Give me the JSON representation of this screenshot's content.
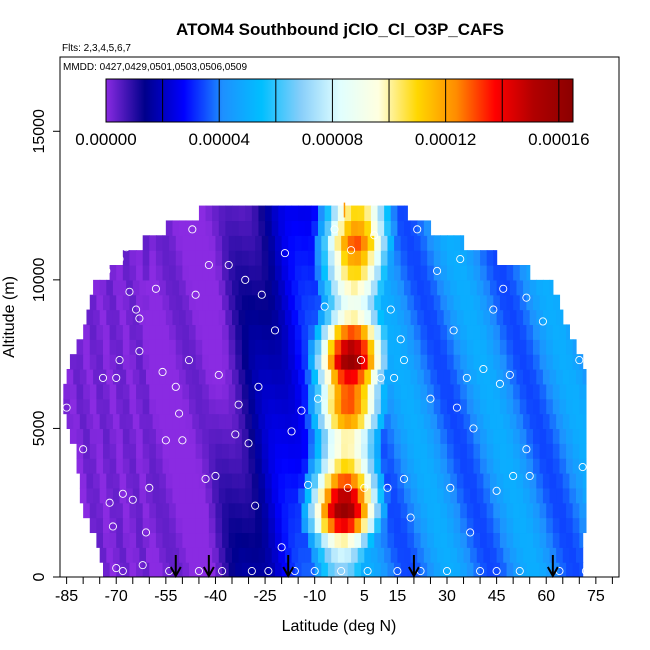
{
  "chart_data": {
    "type": "heatmap",
    "title": "ATOM4 Southbound jClO_Cl_O3P_CAFS",
    "subtitle_flights": "Flts: 2,3,4,5,6,7",
    "subtitle_dates": "MMDD: 0427,0429,0501,0503,0506,0509",
    "xlabel": "Latitude (deg N)",
    "ylabel": "Altitude (m)",
    "xlim": [
      -87,
      82
    ],
    "ylim": [
      0,
      17500
    ],
    "x_ticks": [
      -85,
      -70,
      -55,
      -40,
      -25,
      -10,
      5,
      15,
      30,
      45,
      60,
      75
    ],
    "x_tick_labels": [
      "-85",
      "-70",
      "-55",
      "-40",
      "-25",
      "-10",
      "5",
      "15",
      "30",
      "45",
      "60",
      "75"
    ],
    "x_minor_ticks": [
      -80,
      -75,
      -65,
      -60,
      -50,
      -45,
      -35,
      -30,
      -20,
      -15,
      -5,
      0,
      10,
      20,
      25,
      35,
      40,
      50,
      55,
      65,
      70,
      80
    ],
    "y_ticks": [
      0,
      5000,
      10000,
      15000
    ],
    "y_tick_labels": [
      "0",
      "5000",
      "10000",
      "15000"
    ],
    "colorbar": {
      "min": 0,
      "max": 0.000165,
      "ticks": [
        0,
        4e-05,
        8e-05,
        0.00012,
        0.00016
      ],
      "tick_labels": [
        "0.00000",
        "0.00004",
        "0.00008",
        "0.00012",
        "0.00016"
      ],
      "minor_ticks": [
        2e-05,
        6e-05,
        0.0001,
        0.00014
      ],
      "colors": [
        "#8a2be2",
        "#00008b",
        "#0000ff",
        "#1e90ff",
        "#00bfff",
        "#87cefa",
        "#e0ffff",
        "#ffffe0",
        "#ffd700",
        "#ff8c00",
        "#ff0000",
        "#b00000",
        "#8b0000"
      ]
    },
    "altitude_layers": [
      0,
      500,
      1000,
      1500,
      2000,
      2500,
      3000,
      3500,
      4000,
      4500,
      5000,
      5500,
      6000,
      6500,
      7000,
      7500,
      8000,
      8500,
      9000,
      9500,
      10000,
      10500,
      11000,
      11500,
      12000
    ],
    "lat_min_by_layer": [
      -74,
      -75,
      -76,
      -78,
      -80,
      -81,
      -81,
      -82,
      -82,
      -84,
      -85,
      -86,
      -86,
      -85,
      -84,
      -82,
      -80,
      -79,
      -78,
      -77,
      -72,
      -68,
      -62,
      -55,
      -45
    ],
    "lat_max_by_layer": [
      71,
      71,
      71,
      72,
      72,
      72,
      72,
      72,
      72,
      72,
      72,
      72,
      72,
      72,
      71,
      69,
      67,
      65,
      64,
      62,
      55,
      45,
      35,
      25,
      18
    ],
    "peak_value_by_layer": [
      7e-05,
      8e-05,
      0.0001,
      0.00014,
      0.00016,
      0.00015,
      0.00013,
      0.00011,
      0.0001,
      0.0001,
      0.00012,
      0.00013,
      0.00013,
      0.00014,
      0.00016,
      0.00015,
      0.00013,
      0.0001,
      9e-05,
      0.0001,
      0.00011,
      0.00012,
      0.00013,
      0.00012,
      0.00011
    ],
    "observations": [
      {
        "lat": -85,
        "alt": 5700
      },
      {
        "lat": -83,
        "alt": 9500
      },
      {
        "lat": -82,
        "alt": 9300
      },
      {
        "lat": -80,
        "alt": 4300
      },
      {
        "lat": -76,
        "alt": 11300
      },
      {
        "lat": -74,
        "alt": 6700
      },
      {
        "lat": -73,
        "alt": 10300
      },
      {
        "lat": -72,
        "alt": 2500
      },
      {
        "lat": -71,
        "alt": 1700
      },
      {
        "lat": -70,
        "alt": 300
      },
      {
        "lat": -70,
        "alt": 6700
      },
      {
        "lat": -69,
        "alt": 7300
      },
      {
        "lat": -69,
        "alt": 10700
      },
      {
        "lat": -68,
        "alt": 2800
      },
      {
        "lat": -68,
        "alt": 200
      },
      {
        "lat": -67,
        "alt": 11100
      },
      {
        "lat": -66,
        "alt": 9600
      },
      {
        "lat": -65,
        "alt": 2600
      },
      {
        "lat": -64,
        "alt": 9000
      },
      {
        "lat": -63,
        "alt": 7600
      },
      {
        "lat": -63,
        "alt": 8700
      },
      {
        "lat": -62,
        "alt": 400
      },
      {
        "lat": -61,
        "alt": 1500
      },
      {
        "lat": -60,
        "alt": 3000
      },
      {
        "lat": -58,
        "alt": 9700
      },
      {
        "lat": -56,
        "alt": 6900
      },
      {
        "lat": -55,
        "alt": 4600
      },
      {
        "lat": -54,
        "alt": 200
      },
      {
        "lat": -52,
        "alt": 6400
      },
      {
        "lat": -51,
        "alt": 5500
      },
      {
        "lat": -50,
        "alt": 4600
      },
      {
        "lat": -48,
        "alt": 7300
      },
      {
        "lat": -47,
        "alt": 11700
      },
      {
        "lat": -46,
        "alt": 9500
      },
      {
        "lat": -45,
        "alt": 200
      },
      {
        "lat": -43,
        "alt": 3300
      },
      {
        "lat": -42,
        "alt": 10500
      },
      {
        "lat": -40,
        "alt": 3400
      },
      {
        "lat": -39,
        "alt": 6800
      },
      {
        "lat": -38,
        "alt": 200
      },
      {
        "lat": -36,
        "alt": 10500
      },
      {
        "lat": -34,
        "alt": 4800
      },
      {
        "lat": -33,
        "alt": 5800
      },
      {
        "lat": -31,
        "alt": 10000
      },
      {
        "lat": -30,
        "alt": 4500
      },
      {
        "lat": -29,
        "alt": 200
      },
      {
        "lat": -28,
        "alt": 2400
      },
      {
        "lat": -27,
        "alt": 6400
      },
      {
        "lat": -26,
        "alt": 9500
      },
      {
        "lat": -24,
        "alt": 200
      },
      {
        "lat": -22,
        "alt": 8300
      },
      {
        "lat": -20,
        "alt": 1000
      },
      {
        "lat": -19,
        "alt": 10900
      },
      {
        "lat": -17,
        "alt": 4900
      },
      {
        "lat": -16,
        "alt": 200
      },
      {
        "lat": -14,
        "alt": 5600
      },
      {
        "lat": -12,
        "alt": 3100
      },
      {
        "lat": -10,
        "alt": 200
      },
      {
        "lat": -9,
        "alt": 6000
      },
      {
        "lat": -7,
        "alt": 9100
      },
      {
        "lat": -4,
        "alt": 11700
      },
      {
        "lat": -2,
        "alt": 200
      },
      {
        "lat": 0,
        "alt": 3000
      },
      {
        "lat": 1,
        "alt": 11000
      },
      {
        "lat": 4,
        "alt": 7300
      },
      {
        "lat": 5,
        "alt": 3000
      },
      {
        "lat": 6,
        "alt": 200
      },
      {
        "lat": 8,
        "alt": 11500
      },
      {
        "lat": 10,
        "alt": 6700
      },
      {
        "lat": 12,
        "alt": 3000
      },
      {
        "lat": 13,
        "alt": 9000
      },
      {
        "lat": 14,
        "alt": 6700
      },
      {
        "lat": 15,
        "alt": 200
      },
      {
        "lat": 16,
        "alt": 8000
      },
      {
        "lat": 17,
        "alt": 3300
      },
      {
        "lat": 17,
        "alt": 7300
      },
      {
        "lat": 19,
        "alt": 2000
      },
      {
        "lat": 21,
        "alt": 11700
      },
      {
        "lat": 22,
        "alt": 200
      },
      {
        "lat": 25,
        "alt": 6000
      },
      {
        "lat": 27,
        "alt": 10300
      },
      {
        "lat": 30,
        "alt": 200
      },
      {
        "lat": 31,
        "alt": 3000
      },
      {
        "lat": 32,
        "alt": 8300
      },
      {
        "lat": 33,
        "alt": 5700
      },
      {
        "lat": 34,
        "alt": 10700
      },
      {
        "lat": 36,
        "alt": 6700
      },
      {
        "lat": 37,
        "alt": 1500
      },
      {
        "lat": 38,
        "alt": 5000
      },
      {
        "lat": 40,
        "alt": 200
      },
      {
        "lat": 41,
        "alt": 7000
      },
      {
        "lat": 44,
        "alt": 9000
      },
      {
        "lat": 45,
        "alt": 200
      },
      {
        "lat": 45,
        "alt": 2900
      },
      {
        "lat": 46,
        "alt": 6500
      },
      {
        "lat": 47,
        "alt": 9700
      },
      {
        "lat": 49,
        "alt": 6800
      },
      {
        "lat": 50,
        "alt": 3400
      },
      {
        "lat": 52,
        "alt": 200
      },
      {
        "lat": 54,
        "alt": 4300
      },
      {
        "lat": 54,
        "alt": 9400
      },
      {
        "lat": 55,
        "alt": 3400
      },
      {
        "lat": 59,
        "alt": 8600
      },
      {
        "lat": 64,
        "alt": 200
      },
      {
        "lat": 70,
        "alt": 7300
      },
      {
        "lat": 71,
        "alt": 3700
      },
      {
        "lat": 72,
        "alt": 200
      }
    ],
    "arrow_markers_lat": [
      -52,
      -42,
      -18,
      20,
      62
    ],
    "spike_marker": {
      "lat": -1,
      "alt": 12100
    }
  }
}
